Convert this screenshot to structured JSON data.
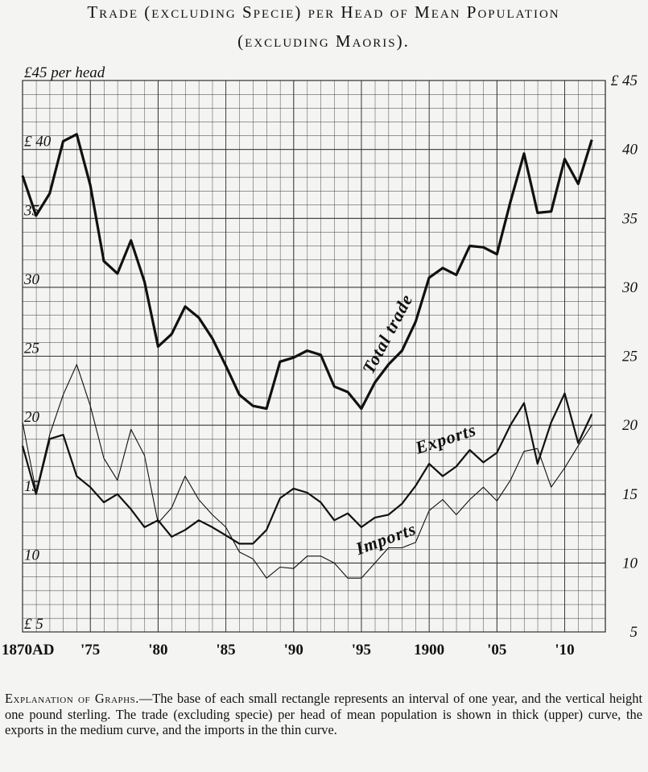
{
  "chart_data": {
    "type": "line",
    "title": "Trade (excluding Specie) per Head of Mean Population",
    "subtitle": "(excluding Maoris).",
    "x": [
      1870,
      1871,
      1872,
      1873,
      1874,
      1875,
      1876,
      1877,
      1878,
      1879,
      1880,
      1881,
      1882,
      1883,
      1884,
      1885,
      1886,
      1887,
      1888,
      1889,
      1890,
      1891,
      1892,
      1893,
      1894,
      1895,
      1896,
      1897,
      1898,
      1899,
      1900,
      1901,
      1902,
      1903,
      1904,
      1905,
      1906,
      1907,
      1908,
      1909,
      1910,
      1911,
      1912
    ],
    "series": [
      {
        "name": "Total trade",
        "color": "#111111",
        "values": [
          38.1,
          35.2,
          36.8,
          40.6,
          41.1,
          37.4,
          31.9,
          31.0,
          33.4,
          30.4,
          25.7,
          26.6,
          28.6,
          27.8,
          26.3,
          24.3,
          22.2,
          21.4,
          21.2,
          24.6,
          24.9,
          25.4,
          25.1,
          22.8,
          22.4,
          21.2,
          23.1,
          24.4,
          25.4,
          27.5,
          30.7,
          31.4,
          30.9,
          33.0,
          32.9,
          32.4,
          36.2,
          39.7,
          35.4,
          35.5,
          39.3,
          37.5,
          40.7
        ]
      },
      {
        "name": "Exports",
        "color": "#111111",
        "values": [
          18.5,
          15.0,
          19.0,
          19.3,
          16.3,
          15.5,
          14.4,
          15.0,
          13.9,
          12.6,
          13.1,
          11.9,
          12.4,
          13.1,
          12.6,
          12.0,
          11.4,
          11.4,
          12.4,
          14.7,
          15.4,
          15.1,
          14.4,
          13.1,
          13.6,
          12.6,
          13.3,
          13.5,
          14.3,
          15.6,
          17.2,
          16.3,
          17.0,
          18.2,
          17.3,
          18.0,
          20.0,
          21.6,
          17.2,
          20.2,
          22.3,
          18.7,
          20.8
        ]
      },
      {
        "name": "Imports",
        "color": "#111111",
        "values": [
          20.2,
          15.2,
          19.3,
          22.2,
          24.4,
          21.4,
          17.6,
          16.0,
          19.7,
          17.8,
          12.9,
          14.0,
          16.3,
          14.6,
          13.5,
          12.6,
          10.8,
          10.3,
          8.9,
          9.7,
          9.6,
          10.5,
          10.5,
          10.0,
          8.9,
          8.9,
          10.0,
          11.1,
          11.1,
          11.5,
          13.8,
          14.6,
          13.5,
          14.6,
          15.5,
          14.5,
          16.0,
          18.1,
          18.3,
          15.5,
          16.9,
          18.5,
          20.0
        ]
      }
    ],
    "xlim": [
      1870,
      1913
    ],
    "xticks": [
      {
        "value": 1870,
        "label": "1870AD"
      },
      {
        "value": 1875,
        "label": "'75"
      },
      {
        "value": 1880,
        "label": "'80"
      },
      {
        "value": 1885,
        "label": "'85"
      },
      {
        "value": 1890,
        "label": "'90"
      },
      {
        "value": 1895,
        "label": "'95"
      },
      1900,
      {
        "value": 1905,
        "label": "'05"
      },
      {
        "value": 1910,
        "label": "'10"
      }
    ],
    "ylim": [
      5,
      45
    ],
    "yticks": [
      {
        "value": 5,
        "label": "£ 5"
      },
      10,
      15,
      20,
      25,
      30,
      35,
      {
        "value": 40,
        "label": "£ 40"
      },
      {
        "value": 45,
        "label": "£45 per head"
      }
    ],
    "y2lim": [
      5,
      45
    ],
    "y2ticks": [
      5,
      10,
      15,
      20,
      25,
      30,
      35,
      40,
      {
        "value": 45,
        "label": "£ 45"
      }
    ],
    "grid": true,
    "note_heading": "Explanation of Graphs.",
    "note": "—The base of each small rectangle represents an interval of one year, and the vertical height one pound sterling. The trade (excluding specie) per head of mean population is shown in thick (upper) curve, the exports in the medium curve, and the imports in the thin curve."
  }
}
